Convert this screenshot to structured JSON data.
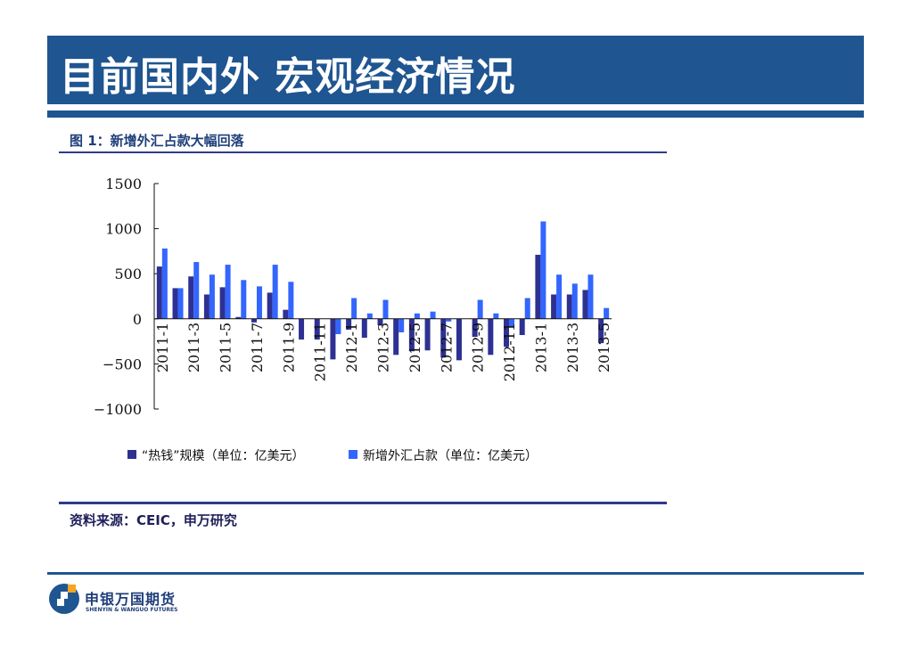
{
  "header": {
    "title": "目前国内外  宏观经济情况"
  },
  "figure": {
    "caption": "图 1：新增外汇占款大幅回落"
  },
  "source": "资料来源：CEIC，申万研究",
  "logo": {
    "name_cn": "申银万国期货",
    "name_en": "SHENYIN & WANGUO FUTURES"
  },
  "colors": {
    "hot_money": "#2e3192",
    "fx_reserves": "#3366ff",
    "title_bar": "#1f5591"
  },
  "chart_data": {
    "type": "bar",
    "categories": [
      "2011-1",
      "2011-2",
      "2011-3",
      "2011-4",
      "2011-5",
      "2011-6",
      "2011-7",
      "2011-8",
      "2011-9",
      "2011-10",
      "2011-11",
      "2011-12",
      "2012-1",
      "2012-2",
      "2012-3",
      "2012-4",
      "2012-5",
      "2012-6",
      "2012-7",
      "2012-8",
      "2012-9",
      "2012-10",
      "2012-11",
      "2012-12",
      "2013-1",
      "2013-2",
      "2013-3",
      "2013-4",
      "2013-5"
    ],
    "tick_labels": [
      "2011-1",
      "",
      "2011-3",
      "",
      "2011-5",
      "",
      "2011-7",
      "",
      "2011-9",
      "",
      "2011-11",
      "",
      "2012-1",
      "",
      "2012-3",
      "",
      "2012-5",
      "",
      "2012-7",
      "",
      "2012-9",
      "",
      "2012-11",
      "",
      "2013-1",
      "",
      "2013-3",
      "",
      "2013-5"
    ],
    "series": [
      {
        "name": "“热钱”规模（单位：亿美元）",
        "values": [
          580,
          340,
          470,
          270,
          350,
          20,
          -40,
          290,
          100,
          -230,
          -230,
          -450,
          -120,
          -210,
          -70,
          -400,
          -360,
          -350,
          -430,
          -460,
          -200,
          -400,
          -310,
          -180,
          710,
          270,
          270,
          320,
          -270
        ]
      },
      {
        "name": "新增外汇占款（单位：亿美元）",
        "values": [
          780,
          340,
          630,
          490,
          600,
          430,
          360,
          600,
          410,
          0,
          0,
          -170,
          230,
          60,
          210,
          -150,
          60,
          80,
          -30,
          0,
          210,
          60,
          -90,
          230,
          1080,
          490,
          390,
          490,
          120
        ]
      }
    ],
    "yticks": [
      1500,
      1000,
      500,
      0,
      -500,
      -1000
    ],
    "ylim": [
      -1000,
      1500
    ],
    "xlabel": "",
    "ylabel": "",
    "legend_position": "bottom"
  }
}
